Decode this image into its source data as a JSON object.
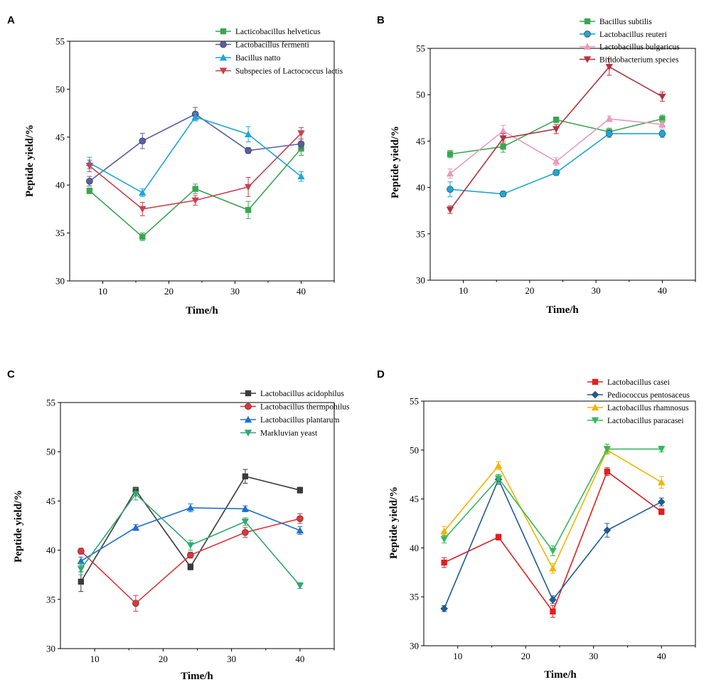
{
  "chart_data": [
    {
      "panel": "A",
      "type": "line",
      "xlabel": "Time/h",
      "ylabel": "Peptide yield/%",
      "xlim": [
        5,
        45
      ],
      "ylim": [
        30,
        55
      ],
      "xticks": [
        10,
        20,
        30,
        40
      ],
      "yticks": [
        30,
        35,
        40,
        45,
        50,
        55
      ],
      "x": [
        8,
        16,
        24,
        32,
        40
      ],
      "legend_position": "top-right",
      "series": [
        {
          "name": "Lacticobacillus helveticus",
          "color": "#3aa650",
          "marker": "square",
          "values": [
            39.4,
            34.6,
            39.6,
            37.4,
            43.8
          ],
          "errors": [
            0.3,
            0.4,
            0.5,
            0.9,
            0.7
          ]
        },
        {
          "name": "Lactobacillus fermenti",
          "color": "#5b5ca8",
          "marker": "circle",
          "values": [
            40.4,
            44.6,
            47.4,
            43.6,
            44.3
          ],
          "errors": [
            0.5,
            0.8,
            0.7,
            0.3,
            0.5
          ]
        },
        {
          "name": "Bacillus natto",
          "color": "#1fa6d8",
          "marker": "triangle-up",
          "values": [
            42.3,
            39.2,
            47.1,
            45.3,
            40.9
          ],
          "errors": [
            0.6,
            0.4,
            0.4,
            0.8,
            0.5
          ]
        },
        {
          "name": "Subspecies of Lactococcus lactis",
          "color": "#c8414e",
          "marker": "triangle-down",
          "values": [
            42.0,
            37.5,
            38.4,
            39.8,
            45.4
          ],
          "errors": [
            0.6,
            0.7,
            0.5,
            1.0,
            0.6
          ]
        }
      ]
    },
    {
      "panel": "B",
      "type": "line",
      "xlabel": "Time/h",
      "ylabel": "Peptide yield/%",
      "xlim": [
        5,
        45
      ],
      "ylim": [
        30,
        55
      ],
      "xticks": [
        10,
        20,
        30,
        40
      ],
      "yticks": [
        30,
        35,
        40,
        45,
        50,
        55
      ],
      "x": [
        8,
        16,
        24,
        32,
        40
      ],
      "legend_position": "top-right",
      "series": [
        {
          "name": "Bacillus subtilis",
          "color": "#3aa650",
          "marker": "square",
          "values": [
            43.6,
            44.4,
            47.3,
            46.0,
            47.4
          ],
          "errors": [
            0.4,
            0.6,
            0.3,
            0.4,
            0.4
          ]
        },
        {
          "name": "Lactobacillus reuteri",
          "color": "#1fa6d8",
          "marker": "circle",
          "values": [
            39.8,
            39.3,
            41.6,
            45.8,
            45.8
          ],
          "errors": [
            0.8,
            0.3,
            0.3,
            0.4,
            0.4
          ]
        },
        {
          "name": "Lactobacillus bulgaricus",
          "color": "#e89bbd",
          "marker": "triangle-up",
          "values": [
            41.5,
            46.1,
            42.8,
            47.4,
            46.8
          ],
          "errors": [
            0.5,
            0.6,
            0.4,
            0.3,
            0.4
          ]
        },
        {
          "name": "Bifidobacterium species",
          "color": "#b3323f",
          "marker": "triangle-down",
          "values": [
            37.6,
            45.3,
            46.3,
            53.0,
            49.8
          ],
          "errors": [
            0.4,
            0.5,
            0.5,
            0.9,
            0.5
          ]
        }
      ]
    },
    {
      "panel": "C",
      "type": "line",
      "xlabel": "Time/h",
      "ylabel": "Peptide yield/%",
      "xlim": [
        5,
        45
      ],
      "ylim": [
        30,
        55
      ],
      "xticks": [
        10,
        20,
        30,
        40
      ],
      "yticks": [
        30,
        35,
        40,
        45,
        50,
        55
      ],
      "x": [
        8,
        16,
        24,
        32,
        40
      ],
      "legend_position": "top-right",
      "series": [
        {
          "name": "Lactobacillus acidophilus",
          "color": "#3a3a3a",
          "marker": "square",
          "values": [
            36.8,
            46.1,
            38.3,
            47.5,
            46.1
          ],
          "errors": [
            1.0,
            0.3,
            0.3,
            0.7,
            0.3
          ]
        },
        {
          "name": "Lactobacillus thermpohilus",
          "color": "#e0353b",
          "marker": "circle",
          "values": [
            39.9,
            34.6,
            39.5,
            41.8,
            43.2
          ],
          "errors": [
            0.3,
            0.8,
            0.3,
            0.5,
            0.5
          ]
        },
        {
          "name": "Lactobacillus plantarum",
          "color": "#1f6fd0",
          "marker": "triangle-up",
          "values": [
            38.9,
            42.3,
            44.3,
            44.2,
            42.0
          ],
          "errors": [
            0.4,
            0.3,
            0.4,
            0.3,
            0.4
          ]
        },
        {
          "name": " Markluvian yeast",
          "color": "#2eaa6e",
          "marker": "triangle-down",
          "values": [
            38.1,
            45.7,
            40.5,
            42.9,
            36.4
          ],
          "errors": [
            0.6,
            0.6,
            0.5,
            0.4,
            0.3
          ]
        }
      ]
    },
    {
      "panel": "D",
      "type": "line",
      "xlabel": "Time/h",
      "ylabel": "Peptide yield/%",
      "xlim": [
        5,
        45
      ],
      "ylim": [
        30,
        55
      ],
      "xticks": [
        10,
        20,
        30,
        40
      ],
      "yticks": [
        30,
        35,
        40,
        45,
        50,
        55
      ],
      "x": [
        8,
        16,
        24,
        32,
        40
      ],
      "legend_position": "top-right",
      "series": [
        {
          "name": "Lactobacillus casei",
          "color": "#e02020",
          "marker": "square",
          "values": [
            38.5,
            41.1,
            33.5,
            47.8,
            43.7
          ],
          "errors": [
            0.5,
            0.3,
            0.6,
            0.4,
            0.3
          ]
        },
        {
          "name": "Pediococcus pentosaceus",
          "color": "#1f5a9a",
          "marker": "diamond",
          "values": [
            33.8,
            47.0,
            34.7,
            41.8,
            44.7
          ],
          "errors": [
            0.3,
            0.5,
            0.4,
            0.7,
            0.4
          ]
        },
        {
          "name": "Lactobacillus rhamnosus",
          "color": "#f2b400",
          "marker": "triangle-up",
          "values": [
            41.7,
            48.4,
            37.9,
            50.0,
            46.7
          ],
          "errors": [
            0.5,
            0.4,
            0.5,
            0.4,
            0.6
          ]
        },
        {
          "name": "Lactobacillus paracasei",
          "color": "#35b85a",
          "marker": "triangle-down",
          "values": [
            40.9,
            47.1,
            39.7,
            50.1,
            50.1
          ],
          "errors": [
            0.4,
            0.4,
            0.5,
            0.5,
            0.3
          ]
        }
      ]
    }
  ]
}
